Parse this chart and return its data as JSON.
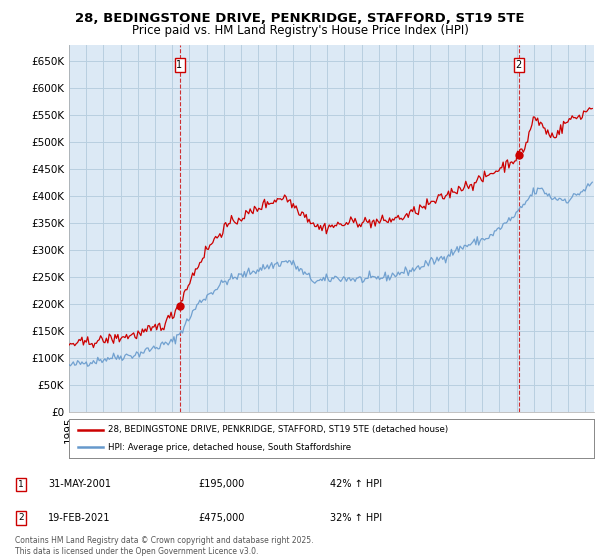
{
  "title_line1": "28, BEDINGSTONE DRIVE, PENKRIDGE, STAFFORD, ST19 5TE",
  "title_line2": "Price paid vs. HM Land Registry's House Price Index (HPI)",
  "ylabel_ticks": [
    "£0",
    "£50K",
    "£100K",
    "£150K",
    "£200K",
    "£250K",
    "£300K",
    "£350K",
    "£400K",
    "£450K",
    "£500K",
    "£550K",
    "£600K",
    "£650K"
  ],
  "ytick_values": [
    0,
    50000,
    100000,
    150000,
    200000,
    250000,
    300000,
    350000,
    400000,
    450000,
    500000,
    550000,
    600000,
    650000
  ],
  "ylim": [
    0,
    680000
  ],
  "xlim_start": 1995.0,
  "xlim_end": 2025.5,
  "transaction1_x": 2001.42,
  "transaction1_y": 195000,
  "transaction1_label": "1",
  "transaction1_date": "31-MAY-2001",
  "transaction1_price": "£195,000",
  "transaction1_hpi": "42% ↑ HPI",
  "transaction2_x": 2021.12,
  "transaction2_y": 475000,
  "transaction2_label": "2",
  "transaction2_date": "19-FEB-2021",
  "transaction2_price": "£475,000",
  "transaction2_hpi": "32% ↑ HPI",
  "line1_color": "#cc0000",
  "line2_color": "#6699cc",
  "vline_color": "#cc0000",
  "marker_color": "#cc0000",
  "plot_bg_color": "#dce9f5",
  "legend_label1": "28, BEDINGSTONE DRIVE, PENKRIDGE, STAFFORD, ST19 5TE (detached house)",
  "legend_label2": "HPI: Average price, detached house, South Staffordshire",
  "footer": "Contains HM Land Registry data © Crown copyright and database right 2025.\nThis data is licensed under the Open Government Licence v3.0.",
  "background_color": "#ffffff",
  "grid_color": "#b8cfe0",
  "title_fontsize": 9.5,
  "subtitle_fontsize": 8.5,
  "tick_fontsize": 7.5
}
